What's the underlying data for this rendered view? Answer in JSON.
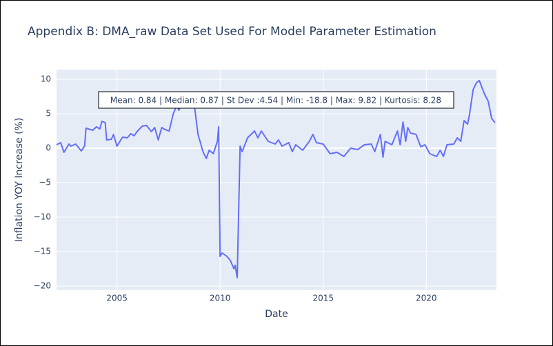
{
  "chart_data": {
    "type": "line",
    "title": "Appendix B: DMA_raw Data Set Used For Model Parameter Estimation",
    "xlabel": "Date",
    "ylabel": "Inflation YOY Increase (%)",
    "annotation": "Mean: 0.84 | Median: 0.87 | St Dev :4.54 | Min: -18.8 | Max: 9.82 | Kurtosis: 8.28",
    "x": [
      2002.07,
      2002.27,
      2002.43,
      2002.67,
      2002.77,
      2003.0,
      2003.27,
      2003.43,
      2003.5,
      2003.83,
      2004.0,
      2004.17,
      2004.27,
      2004.43,
      2004.5,
      2004.73,
      2004.83,
      2005.0,
      2005.27,
      2005.5,
      2005.67,
      2005.83,
      2006.0,
      2006.23,
      2006.43,
      2006.67,
      2006.83,
      2007.0,
      2007.17,
      2007.33,
      2007.53,
      2007.73,
      2007.9,
      2008.0,
      2008.17,
      2008.33,
      2008.6,
      2008.77,
      2008.93,
      2009.17,
      2009.33,
      2009.47,
      2009.67,
      2009.87,
      2009.93,
      2010.0,
      2010.1,
      2010.33,
      2010.5,
      2010.67,
      2010.73,
      2010.83,
      2010.97,
      2011.07,
      2011.33,
      2011.67,
      2011.83,
      2012.0,
      2012.33,
      2012.67,
      2012.83,
      2013.0,
      2013.33,
      2013.5,
      2013.67,
      2014.0,
      2014.33,
      2014.5,
      2014.67,
      2015.0,
      2015.33,
      2015.67,
      2015.83,
      2016.0,
      2016.33,
      2016.67,
      2017.0,
      2017.33,
      2017.5,
      2017.77,
      2017.9,
      2018.0,
      2018.33,
      2018.6,
      2018.73,
      2018.87,
      2019.0,
      2019.1,
      2019.23,
      2019.5,
      2019.73,
      2019.93,
      2020.17,
      2020.33,
      2020.5,
      2020.67,
      2020.83,
      2021.0,
      2021.33,
      2021.5,
      2021.67,
      2021.83,
      2022.0,
      2022.1,
      2022.27,
      2022.43,
      2022.57,
      2022.67,
      2022.83,
      2023.0,
      2023.17,
      2023.33
    ],
    "series": [
      {
        "name": "DMA_raw",
        "color": "#636efa",
        "values": [
          0.5,
          0.8,
          -0.6,
          0.6,
          0.3,
          0.6,
          -0.4,
          0.3,
          2.9,
          2.6,
          3.1,
          2.8,
          3.9,
          3.7,
          1.2,
          1.3,
          2.0,
          0.3,
          1.6,
          1.5,
          2.1,
          1.8,
          2.5,
          3.2,
          3.3,
          2.4,
          3.0,
          1.2,
          3.0,
          2.7,
          2.5,
          5.0,
          6.2,
          5.5,
          6.5,
          7.0,
          6.0,
          5.8,
          2.0,
          -0.5,
          -1.5,
          -0.3,
          -0.8,
          1.0,
          3.1,
          -15.7,
          -15.2,
          -15.7,
          -16.3,
          -17.5,
          -17.0,
          -18.8,
          0.3,
          -0.5,
          1.5,
          2.5,
          1.5,
          2.5,
          1.0,
          0.6,
          1.2,
          0.3,
          0.8,
          -0.5,
          0.5,
          -0.3,
          1.0,
          2.0,
          0.8,
          0.6,
          -0.8,
          -0.6,
          -0.9,
          -1.2,
          0.0,
          -0.2,
          0.5,
          0.6,
          -0.5,
          2.0,
          -1.3,
          1.0,
          0.5,
          2.5,
          0.5,
          3.8,
          1.0,
          3.0,
          2.2,
          2.0,
          0.2,
          0.5,
          -0.8,
          -1.0,
          -1.2,
          -0.3,
          -1.2,
          0.5,
          0.6,
          1.5,
          1.0,
          4.0,
          3.5,
          5.0,
          8.5,
          9.5,
          9.82,
          9.0,
          7.8,
          6.8,
          4.3,
          3.7
        ]
      }
    ],
    "xlim": [
      2002.07,
      2023.4
    ],
    "xticks": [
      2005,
      2010,
      2015,
      2020
    ],
    "ylim": [
      -20.6,
      11.4
    ],
    "yticks": [
      10,
      5,
      0,
      {
        "value": -5,
        "label": "−5"
      },
      {
        "value": -10,
        "label": "−10"
      },
      {
        "value": -15,
        "label": "−15"
      },
      {
        "value": -20,
        "label": "−20"
      }
    ],
    "grid": true
  }
}
